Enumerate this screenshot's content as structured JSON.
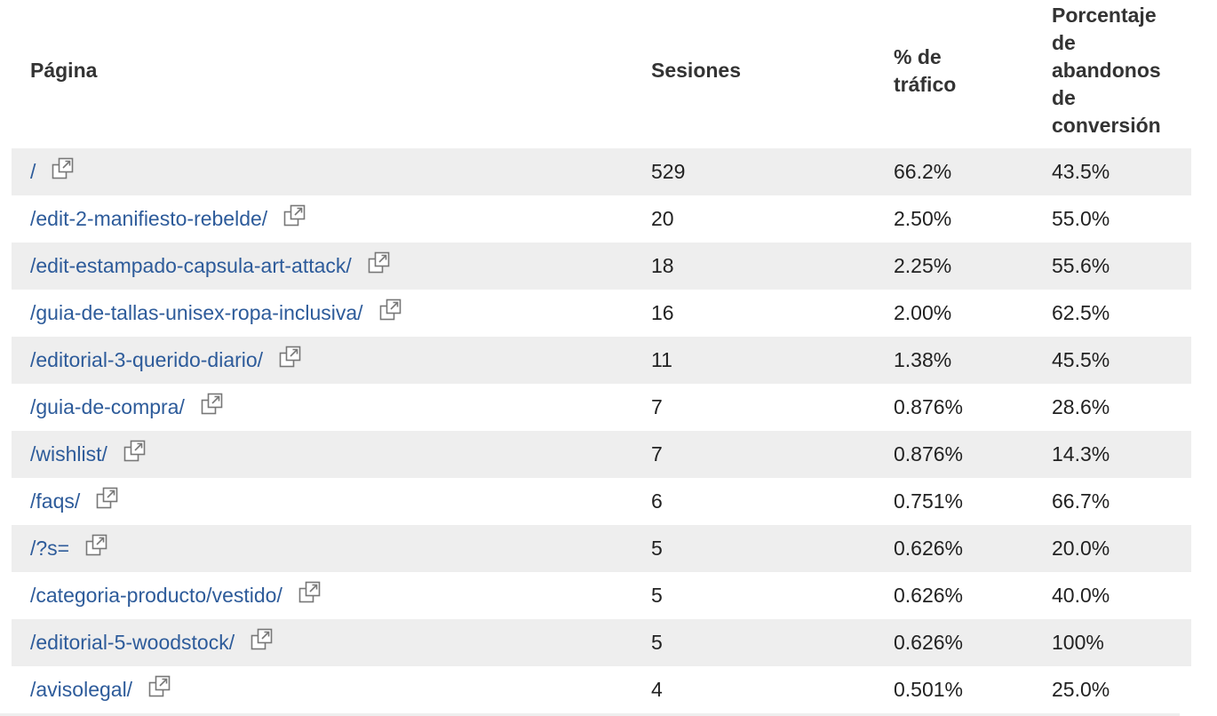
{
  "table": {
    "headers": {
      "page": "Página",
      "sessions": "Sesiones",
      "traffic": "% de tráfico",
      "abandon": "Porcentaje de abandonos de conversión"
    },
    "rows": [
      {
        "page": "/",
        "sessions": "529",
        "traffic": "66.2%",
        "abandon": "43.5%"
      },
      {
        "page": "/edit-2-manifiesto-rebelde/",
        "sessions": "20",
        "traffic": "2.50%",
        "abandon": "55.0%"
      },
      {
        "page": "/edit-estampado-capsula-art-attack/",
        "sessions": "18",
        "traffic": "2.25%",
        "abandon": "55.6%"
      },
      {
        "page": "/guia-de-tallas-unisex-ropa-inclusiva/",
        "sessions": "16",
        "traffic": "2.00%",
        "abandon": "62.5%"
      },
      {
        "page": "/editorial-3-querido-diario/",
        "sessions": "11",
        "traffic": "1.38%",
        "abandon": "45.5%"
      },
      {
        "page": "/guia-de-compra/",
        "sessions": "7",
        "traffic": "0.876%",
        "abandon": "28.6%"
      },
      {
        "page": "/wishlist/",
        "sessions": "7",
        "traffic": "0.876%",
        "abandon": "14.3%"
      },
      {
        "page": "/faqs/",
        "sessions": "6",
        "traffic": "0.751%",
        "abandon": "66.7%"
      },
      {
        "page": "/?s=",
        "sessions": "5",
        "traffic": "0.626%",
        "abandon": "20.0%"
      },
      {
        "page": "/categoria-producto/vestido/",
        "sessions": "5",
        "traffic": "0.626%",
        "abandon": "40.0%"
      },
      {
        "page": "/editorial-5-woodstock/",
        "sessions": "5",
        "traffic": "0.626%",
        "abandon": "100%"
      },
      {
        "page": "/avisolegal/",
        "sessions": "4",
        "traffic": "0.501%",
        "abandon": "25.0%"
      }
    ]
  },
  "icons": {
    "row_action": "external-link-icon"
  },
  "colors": {
    "link": "#2d5b9a",
    "shaded_row": "#eeeeee",
    "header_text": "#333333"
  }
}
